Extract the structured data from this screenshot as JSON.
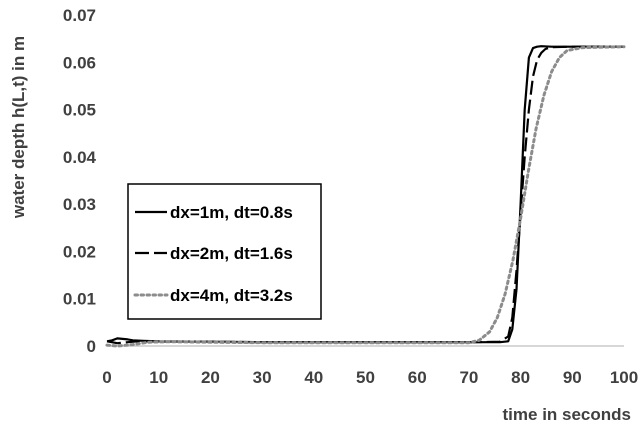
{
  "chart_data": {
    "type": "line",
    "xlabel": "time in seconds",
    "ylabel": "water depth h(L,t) in m",
    "xlim": [
      0,
      100
    ],
    "ylim": [
      0,
      0.07
    ],
    "x_ticks": [
      "0",
      "10",
      "20",
      "30",
      "40",
      "50",
      "60",
      "70",
      "80",
      "90",
      "100"
    ],
    "y_ticks": [
      "0",
      "0.01",
      "0.02",
      "0.03",
      "0.04",
      "0.05",
      "0.06",
      "0.07"
    ],
    "grid": false,
    "legend_position": "left-middle",
    "series": [
      {
        "name": "dx=1m, dt=0.8s",
        "style": "solid",
        "color": "#000000",
        "x": [
          0,
          1,
          2,
          3,
          4,
          5,
          7,
          10,
          20,
          30,
          40,
          50,
          60,
          70,
          76,
          77.6,
          78.4,
          79.2,
          80.0,
          80.8,
          81.6,
          82.4,
          83.2,
          84,
          86,
          90,
          100
        ],
        "y": [
          0.001,
          0.0012,
          0.0016,
          0.0015,
          0.0014,
          0.0012,
          0.0011,
          0.001,
          0.0009,
          0.0008,
          0.0008,
          0.0008,
          0.0008,
          0.0008,
          0.0008,
          0.001,
          0.0035,
          0.012,
          0.03,
          0.05,
          0.061,
          0.063,
          0.0633,
          0.0634,
          0.0633,
          0.0633,
          0.0633
        ]
      },
      {
        "name": "dx=2m, dt=1.6s",
        "style": "dashed",
        "color": "#000000",
        "x": [
          0,
          2,
          4,
          6,
          10,
          20,
          30,
          40,
          50,
          60,
          70,
          76,
          77.6,
          78.4,
          79.2,
          80.0,
          80.8,
          81.6,
          82.4,
          83.2,
          84.0,
          84.8,
          86,
          90,
          100
        ],
        "y": [
          0.001,
          0.0006,
          0.0008,
          0.001,
          0.0009,
          0.0009,
          0.0008,
          0.0008,
          0.0008,
          0.0008,
          0.0008,
          0.0009,
          0.002,
          0.006,
          0.016,
          0.028,
          0.04,
          0.05,
          0.057,
          0.0605,
          0.062,
          0.0628,
          0.0632,
          0.0633,
          0.0633
        ]
      },
      {
        "name": "dx=4m, dt=3.2s",
        "style": "dotted",
        "color": "#8c8c8c",
        "x": [
          0,
          2,
          5,
          8,
          12,
          20,
          30,
          40,
          50,
          60,
          70,
          72,
          74,
          75.5,
          77,
          78.5,
          80,
          81.5,
          83,
          84.5,
          86,
          87.5,
          89,
          92,
          100
        ],
        "y": [
          0.0002,
          0.0,
          0.0003,
          0.0008,
          0.0009,
          0.0008,
          0.0007,
          0.0007,
          0.0007,
          0.0007,
          0.0007,
          0.0012,
          0.003,
          0.006,
          0.011,
          0.018,
          0.027,
          0.037,
          0.046,
          0.053,
          0.058,
          0.061,
          0.0625,
          0.0631,
          0.0633
        ]
      }
    ]
  }
}
